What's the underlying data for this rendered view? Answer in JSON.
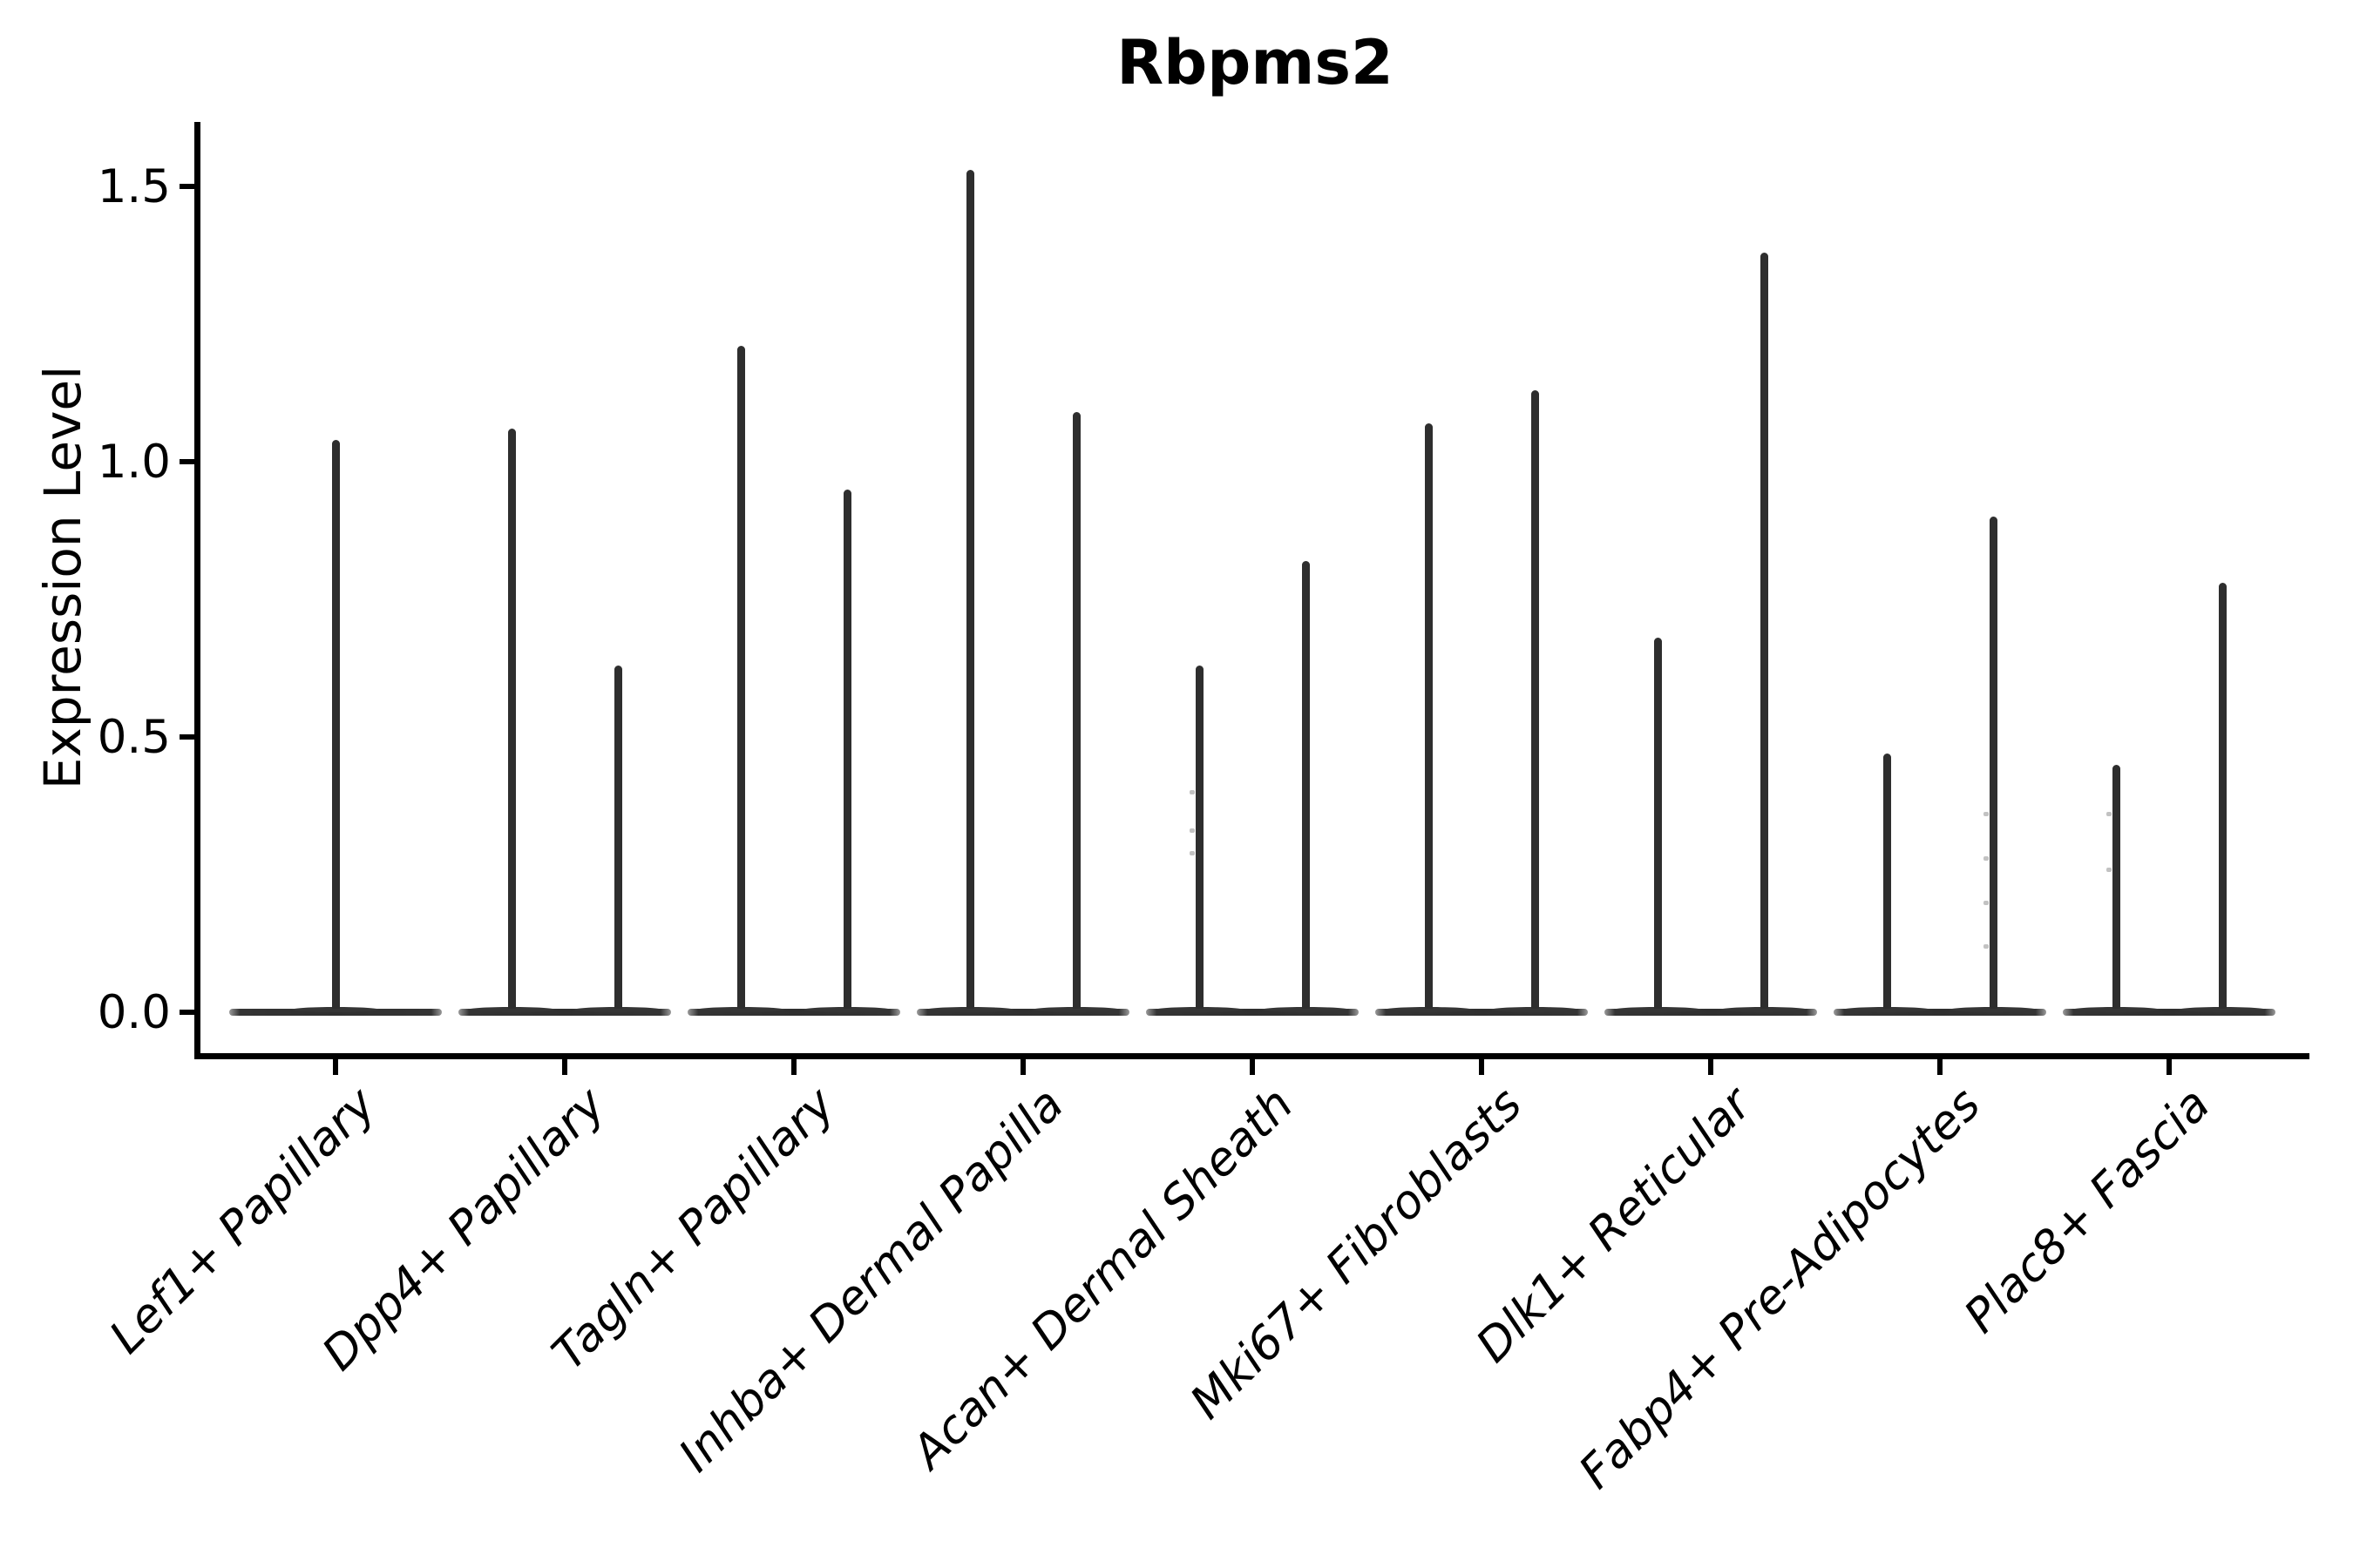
{
  "figure": {
    "title": "Rbpms2",
    "ylabel": "Expression Level",
    "background_color": "#ffffff",
    "ink_color": "#2e2e2e",
    "axis_color": "#000000"
  },
  "chart_data": {
    "type": "violin",
    "title": "Rbpms2",
    "xlabel": "",
    "ylabel": "Expression Level",
    "ylim": [
      0,
      1.58
    ],
    "yticks": [
      "0.0",
      "0.5",
      "1.0",
      "1.5"
    ],
    "ytick_values": [
      0.0,
      0.5,
      1.0,
      1.5
    ],
    "grid": false,
    "legend": "none",
    "note": "Seurat-style stacked violin of Rbpms2 expression; most cells are zero so each violin collapses to a flat base at 0 with a thin spike to the max expression. Categories 2-9 contain two split violins each; category 1 has one centered violin.",
    "categories": [
      "Lef1+ Papillary",
      "Dpp4+ Papillary",
      "Tagln+ Papillary",
      "Inhba+ Dermal Papilla",
      "Acan+ Dermal Sheath",
      "Mki67+ Fibroblasts",
      "Dlk1+ Reticular",
      "Fabp4+ Pre-Adipocytes",
      "Plac8+ Fascia"
    ],
    "violins": [
      {
        "category": "Lef1+ Papillary",
        "spikes": [
          {
            "offset": 0,
            "max": 1.04,
            "specks": []
          }
        ]
      },
      {
        "category": "Dpp4+ Papillary",
        "spikes": [
          {
            "offset": -1,
            "max": 1.06,
            "specks": []
          },
          {
            "offset": 1,
            "max": 0.63,
            "specks": []
          }
        ]
      },
      {
        "category": "Tagln+ Papillary",
        "spikes": [
          {
            "offset": -1,
            "max": 1.21,
            "specks": []
          },
          {
            "offset": 1,
            "max": 0.95,
            "specks": []
          }
        ]
      },
      {
        "category": "Inhba+ Dermal Papilla",
        "spikes": [
          {
            "offset": -1,
            "max": 1.53,
            "specks": []
          },
          {
            "offset": 1,
            "max": 1.09,
            "specks": []
          }
        ]
      },
      {
        "category": "Acan+ Dermal Sheath",
        "spikes": [
          {
            "offset": -1,
            "max": 0.63,
            "specks": [
              0.4,
              0.33,
              0.29
            ]
          },
          {
            "offset": 1,
            "max": 0.82,
            "specks": []
          }
        ]
      },
      {
        "category": "Mki67+ Fibroblasts",
        "spikes": [
          {
            "offset": -1,
            "max": 1.07,
            "specks": []
          },
          {
            "offset": 1,
            "max": 1.13,
            "specks": []
          }
        ]
      },
      {
        "category": "Dlk1+ Reticular",
        "spikes": [
          {
            "offset": -1,
            "max": 0.68,
            "specks": []
          },
          {
            "offset": 1,
            "max": 1.38,
            "specks": []
          }
        ]
      },
      {
        "category": "Fabp4+ Pre-Adipocytes",
        "spikes": [
          {
            "offset": -1,
            "max": 0.47,
            "specks": []
          },
          {
            "offset": 1,
            "max": 0.9,
            "specks": [
              0.36,
              0.28,
              0.2,
              0.12
            ]
          }
        ]
      },
      {
        "category": "Plac8+ Fascia",
        "spikes": [
          {
            "offset": -1,
            "max": 0.45,
            "specks": [
              0.36,
              0.26
            ]
          },
          {
            "offset": 1,
            "max": 0.78,
            "specks": []
          }
        ]
      }
    ]
  }
}
